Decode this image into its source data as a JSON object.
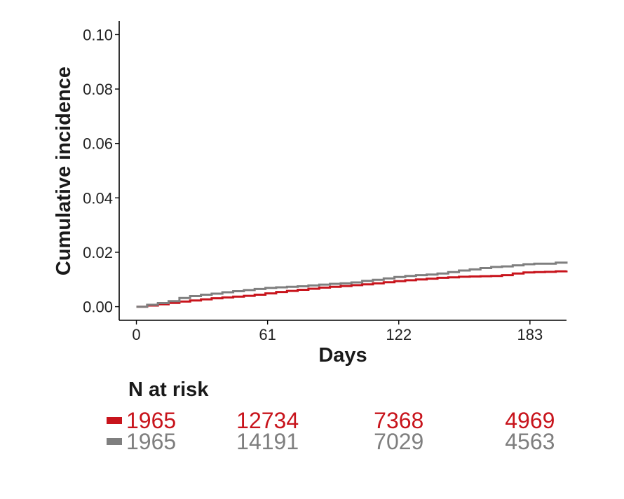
{
  "chart_data": {
    "type": "line",
    "title": "",
    "xlabel": "Days",
    "ylabel": "Cumulative incidence",
    "xlim": [
      -8,
      200
    ],
    "ylim": [
      -0.005,
      0.105
    ],
    "x_ticks": [
      0,
      61,
      122,
      183
    ],
    "y_ticks": [
      0.0,
      0.02,
      0.04,
      0.06,
      0.08,
      0.1
    ],
    "y_tick_labels": [
      "0.00",
      "0.02",
      "0.04",
      "0.06",
      "0.08",
      "0.10"
    ],
    "grid": false,
    "series": [
      {
        "color": "#c8141c",
        "x": [
          0,
          5,
          10,
          15,
          20,
          25,
          30,
          35,
          40,
          45,
          50,
          55,
          60,
          65,
          70,
          75,
          80,
          85,
          90,
          95,
          100,
          105,
          110,
          115,
          120,
          125,
          130,
          135,
          140,
          145,
          150,
          155,
          160,
          165,
          170,
          175,
          180,
          185,
          190,
          195,
          200
        ],
        "y": [
          0.0,
          0.0004,
          0.0009,
          0.0014,
          0.0019,
          0.0023,
          0.0027,
          0.0031,
          0.0034,
          0.0037,
          0.004,
          0.0044,
          0.0049,
          0.0054,
          0.0058,
          0.0062,
          0.0066,
          0.007,
          0.0073,
          0.0076,
          0.0079,
          0.0082,
          0.0086,
          0.009,
          0.0094,
          0.0097,
          0.01,
          0.0103,
          0.0106,
          0.0108,
          0.011,
          0.0111,
          0.0112,
          0.0113,
          0.0116,
          0.0122,
          0.0126,
          0.0127,
          0.0128,
          0.013,
          0.0133
        ]
      },
      {
        "color": "#7f7f7f",
        "x": [
          0,
          5,
          10,
          15,
          20,
          25,
          30,
          35,
          40,
          45,
          50,
          55,
          60,
          65,
          70,
          75,
          80,
          85,
          90,
          95,
          100,
          105,
          110,
          115,
          120,
          125,
          130,
          135,
          140,
          145,
          150,
          155,
          160,
          165,
          170,
          175,
          180,
          185,
          190,
          195,
          200
        ],
        "y": [
          0.0,
          0.0007,
          0.0013,
          0.002,
          0.0032,
          0.0039,
          0.0044,
          0.0048,
          0.0053,
          0.0057,
          0.0061,
          0.0065,
          0.0069,
          0.0071,
          0.0073,
          0.0075,
          0.0078,
          0.0081,
          0.0084,
          0.0086,
          0.0089,
          0.0095,
          0.0099,
          0.0104,
          0.0109,
          0.0113,
          0.0116,
          0.0118,
          0.0122,
          0.0127,
          0.0133,
          0.0137,
          0.0142,
          0.0146,
          0.0148,
          0.0152,
          0.0156,
          0.0158,
          0.0158,
          0.0162,
          0.0166
        ]
      }
    ]
  },
  "risk_table": {
    "title": "N at risk",
    "rows": [
      {
        "color": "#c8141c",
        "values": [
          "1965",
          "12734",
          "7368",
          "4969"
        ]
      },
      {
        "color": "#7f7f7f",
        "values": [
          "1965",
          "14191",
          "7029",
          "4563"
        ]
      }
    ]
  }
}
